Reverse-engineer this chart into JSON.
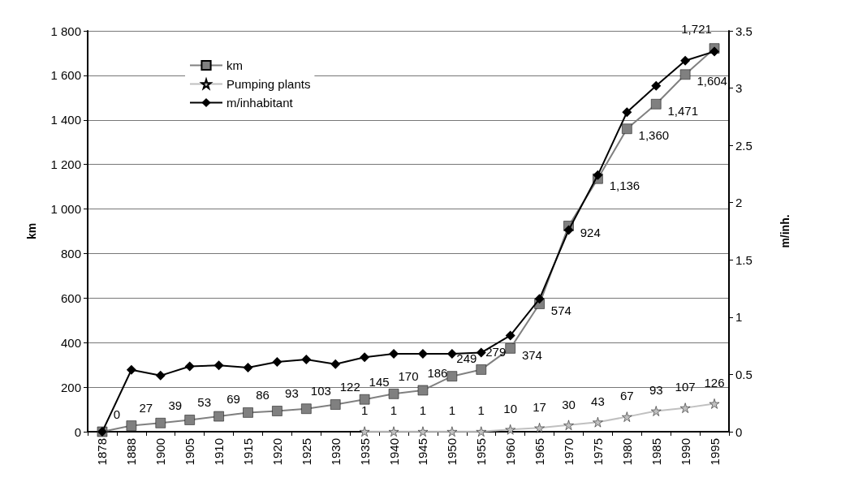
{
  "chart_data": {
    "type": "line",
    "categories": [
      "1878",
      "1888",
      "1900",
      "1905",
      "1910",
      "1915",
      "1920",
      "1925",
      "1930",
      "1935",
      "1940",
      "1945",
      "1950",
      "1955",
      "1960",
      "1965",
      "1970",
      "1975",
      "1980",
      "1985",
      "1990",
      "1995"
    ],
    "series": [
      {
        "name": "km",
        "color": "#808080",
        "marker": "square",
        "values": [
          0,
          27,
          39,
          53,
          69,
          86,
          93,
          103,
          122,
          145,
          170,
          186,
          249,
          279,
          374,
          574,
          924,
          1136,
          1360,
          1471,
          1604,
          1721
        ],
        "value_labels": [
          "0",
          "27",
          "39",
          "53",
          "69",
          "86",
          "93",
          "103",
          "122",
          "145",
          "170",
          "186",
          "249",
          "279",
          "374",
          "574",
          "924",
          "1,136",
          "1,360",
          "1,471",
          "1,604",
          "1,721"
        ]
      },
      {
        "name": "Pumping plants",
        "color": "#c0c0c0",
        "marker": "star",
        "values": [
          null,
          null,
          null,
          null,
          null,
          null,
          null,
          null,
          null,
          1,
          1,
          1,
          1,
          1,
          10,
          17,
          30,
          43,
          67,
          93,
          107,
          126
        ],
        "value_labels": [
          null,
          null,
          null,
          null,
          null,
          null,
          null,
          null,
          null,
          "1",
          "1",
          "1",
          "1",
          "1",
          "10",
          "17",
          "30",
          "43",
          "67",
          "93",
          "107",
          "126"
        ]
      },
      {
        "name": "m/inhabitant",
        "color": "#000000",
        "marker": "diamond",
        "axis": "y2",
        "values": [
          0,
          0.54,
          0.49,
          0.57,
          0.58,
          0.56,
          0.61,
          0.63,
          0.59,
          0.65,
          0.68,
          0.68,
          0.68,
          0.69,
          0.84,
          1.16,
          1.76,
          2.24,
          2.79,
          3.02,
          3.24,
          3.32
        ]
      }
    ],
    "ylabel": "km",
    "y2label": "m/inh.",
    "ylim": [
      0,
      1800
    ],
    "yticks": [
      0,
      200,
      400,
      600,
      800,
      {
        "value": 1000,
        "label": "1 000"
      },
      {
        "value": 1200,
        "label": "1 200"
      },
      {
        "value": 1400,
        "label": "1 400"
      },
      {
        "value": 1600,
        "label": "1 600"
      },
      {
        "value": 1800,
        "label": "1 800"
      }
    ],
    "y2lim": [
      0,
      3.5
    ],
    "y2ticks": [
      0,
      0.5,
      1,
      1.5,
      2,
      2.5,
      3,
      3.5
    ],
    "grid": "y",
    "legend": "top left",
    "line_style": "solid"
  }
}
